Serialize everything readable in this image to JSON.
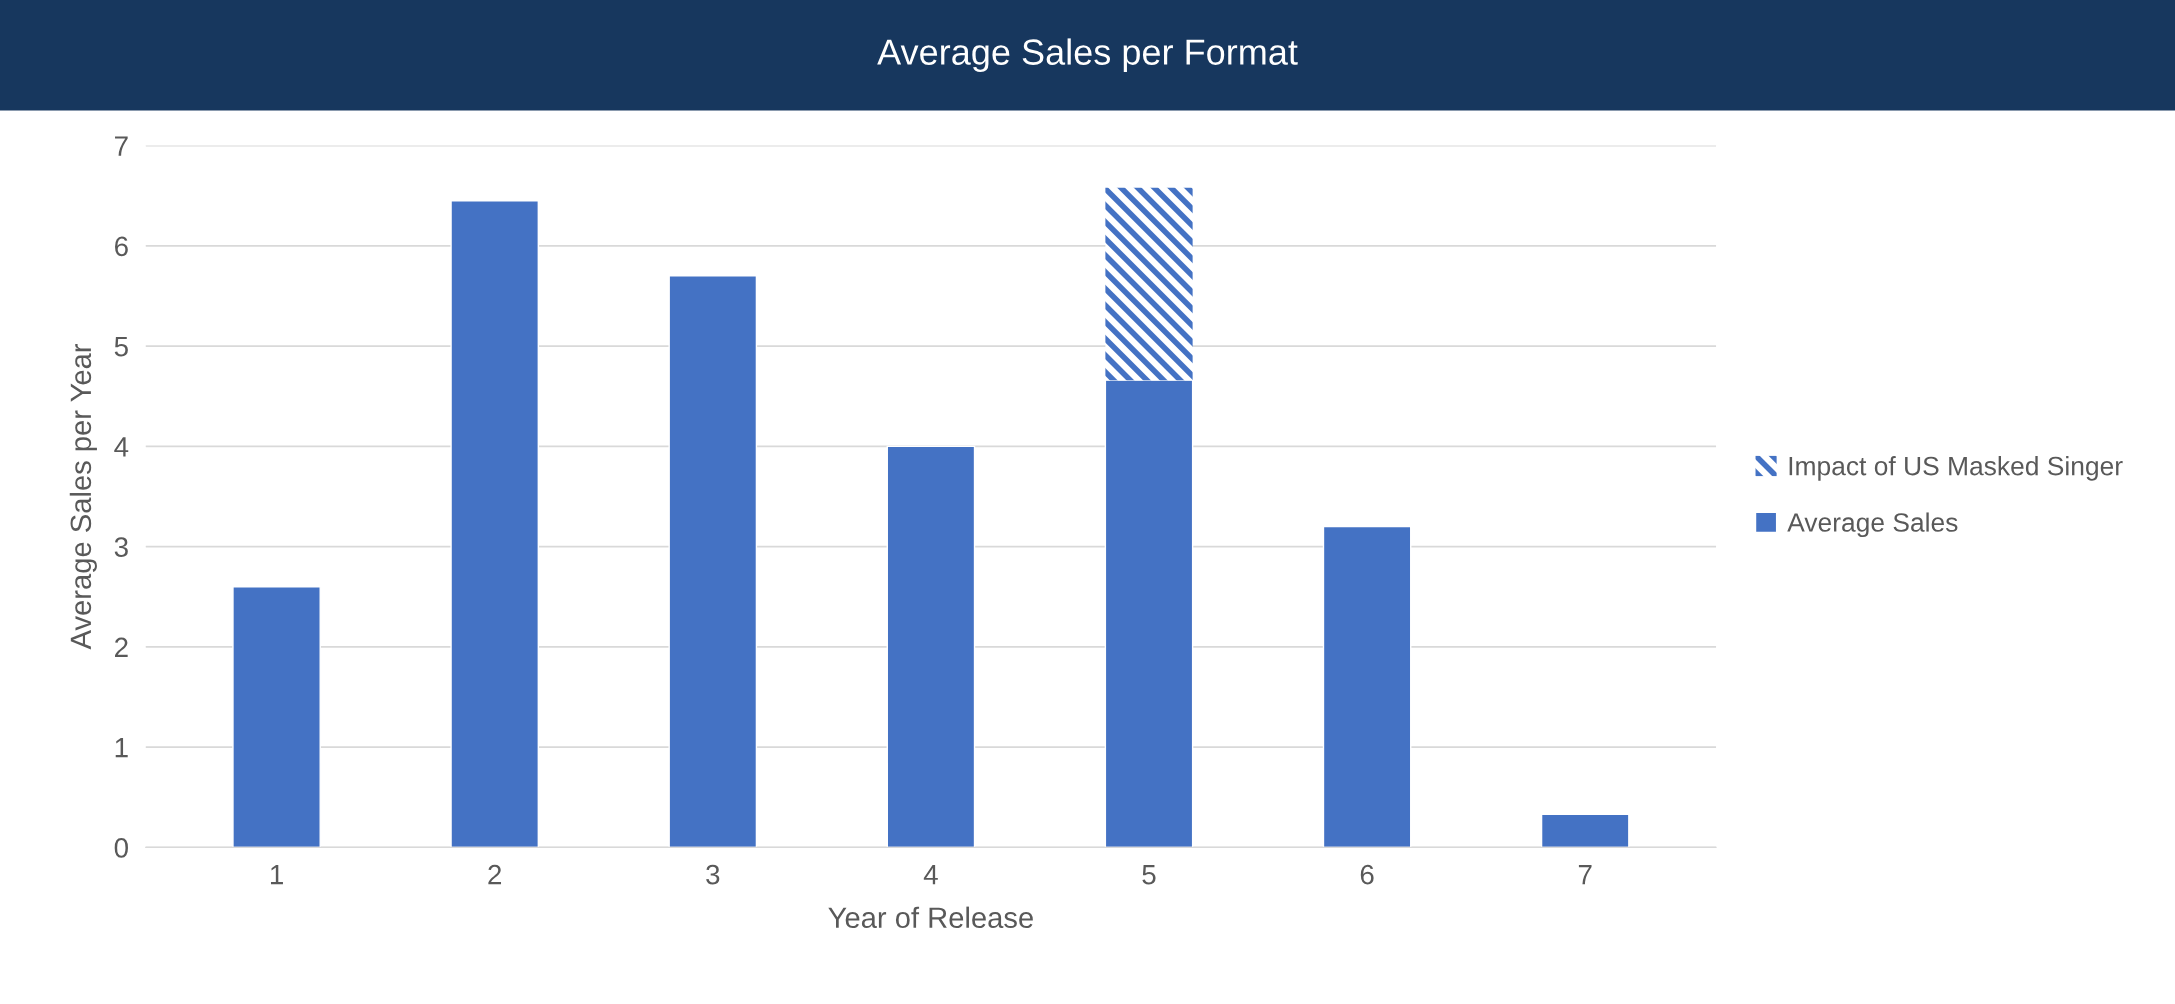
{
  "chart_data": {
    "type": "bar",
    "title": "Average Sales per Format",
    "xlabel": "Year of Release",
    "ylabel": "Average Sales per Year",
    "categories": [
      "1",
      "2",
      "3",
      "4",
      "5",
      "6",
      "7"
    ],
    "series": [
      {
        "name": "Average Sales",
        "color": "#4472c4",
        "values": [
          2.6,
          6.45,
          5.7,
          4.0,
          4.66,
          3.2,
          0.33
        ]
      },
      {
        "name": "Impact of US Masked Singer",
        "color": "#4472c4",
        "values": [
          null,
          null,
          null,
          null,
          1.92,
          null,
          null
        ]
      }
    ],
    "stacked": true,
    "ylim": [
      0,
      7
    ],
    "yticks": [
      0,
      1,
      2,
      3,
      4,
      5,
      6,
      7
    ],
    "grid": "y",
    "legend": "right"
  }
}
